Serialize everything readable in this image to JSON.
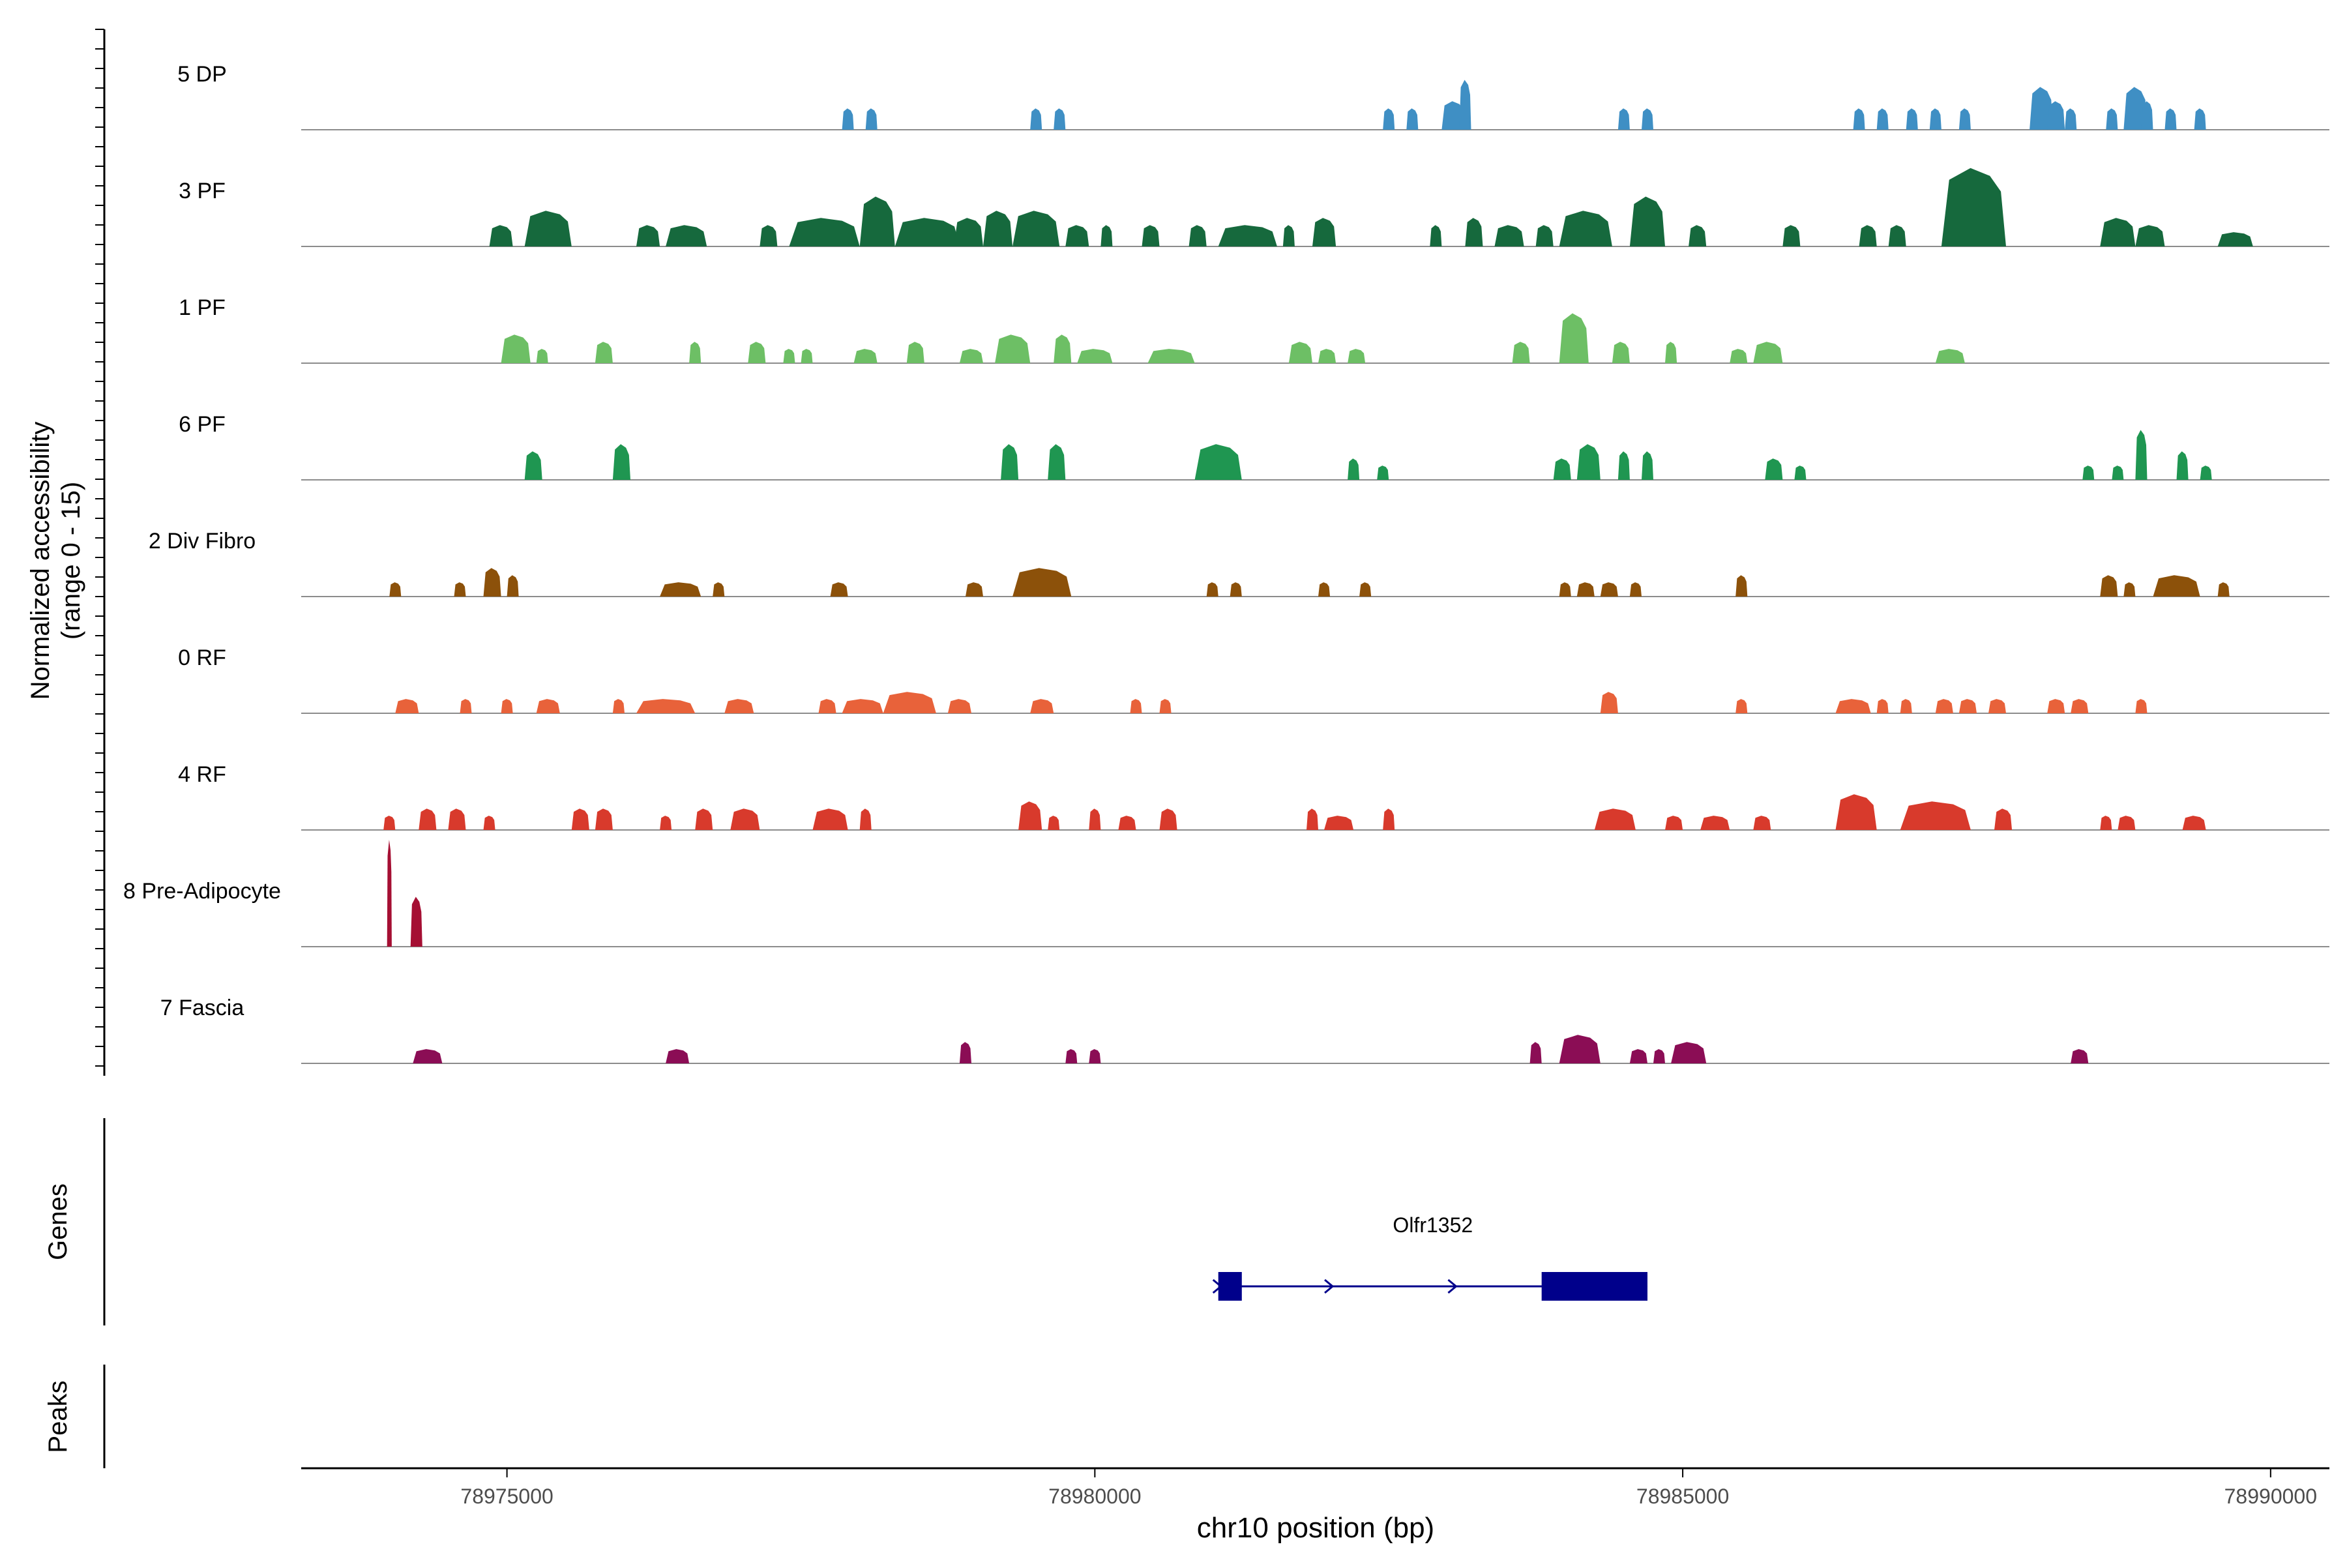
{
  "chart_data": {
    "type": "area",
    "title": "",
    "ylabel_line1": "Normalized accessibility",
    "ylabel_line2": "(range 0 - 15)",
    "xlabel": "chr10 position (bp)",
    "xlim": [
      78973250,
      78990500
    ],
    "ylim": [
      0,
      15
    ],
    "x_ticks": [
      {
        "value": 78975000,
        "label": "78975000"
      },
      {
        "value": 78980000,
        "label": "78980000"
      },
      {
        "value": 78985000,
        "label": "78985000"
      },
      {
        "value": 78990000,
        "label": "78990000"
      }
    ],
    "tracks": [
      {
        "name": "5 DP",
        "color": "#3F8FC4",
        "peaks": [
          [
            78977850,
            78977950,
            3
          ],
          [
            78978050,
            78978150,
            3
          ],
          [
            78979450,
            78979550,
            3
          ],
          [
            78979650,
            78979750,
            3
          ],
          [
            78982450,
            78982550,
            3
          ],
          [
            78982650,
            78982750,
            3
          ],
          [
            78982950,
            78983150,
            4
          ],
          [
            78983100,
            78983200,
            7
          ],
          [
            78984450,
            78984550,
            3
          ],
          [
            78984650,
            78984750,
            3
          ],
          [
            78986450,
            78986550,
            3
          ],
          [
            78986650,
            78986750,
            3
          ],
          [
            78986900,
            78987000,
            3
          ],
          [
            78987100,
            78987200,
            3
          ],
          [
            78987350,
            78987450,
            3
          ],
          [
            78987950,
            78988150,
            6
          ],
          [
            78988100,
            78988250,
            4
          ],
          [
            78988250,
            78988350,
            3
          ],
          [
            78988600,
            78988700,
            3
          ],
          [
            78988750,
            78988950,
            6
          ],
          [
            78988900,
            78989000,
            4
          ],
          [
            78989100,
            78989200,
            3
          ],
          [
            78989350,
            78989450,
            3
          ]
        ]
      },
      {
        "name": "3 PF",
        "color": "#16693D",
        "peaks": [
          [
            78974850,
            78975050,
            3
          ],
          [
            78975150,
            78975550,
            5
          ],
          [
            78976100,
            78976300,
            3
          ],
          [
            78976350,
            78976700,
            3
          ],
          [
            78977150,
            78977300,
            3
          ],
          [
            78977400,
            78978000,
            4
          ],
          [
            78978000,
            78978300,
            7
          ],
          [
            78978300,
            78978850,
            4
          ],
          [
            78978800,
            78979050,
            4
          ],
          [
            78979050,
            78979300,
            5
          ],
          [
            78979300,
            78979700,
            5
          ],
          [
            78979750,
            78979950,
            3
          ],
          [
            78980050,
            78980150,
            3
          ],
          [
            78980400,
            78980550,
            3
          ],
          [
            78980800,
            78980950,
            3
          ],
          [
            78981050,
            78981550,
            3
          ],
          [
            78981600,
            78981700,
            3
          ],
          [
            78981850,
            78982050,
            4
          ],
          [
            78982850,
            78982950,
            3
          ],
          [
            78983150,
            78983300,
            4
          ],
          [
            78983400,
            78983650,
            3
          ],
          [
            78983750,
            78983900,
            3
          ],
          [
            78983950,
            78984400,
            5
          ],
          [
            78984550,
            78984850,
            7
          ],
          [
            78985050,
            78985200,
            3
          ],
          [
            78985850,
            78986000,
            3
          ],
          [
            78986500,
            78986650,
            3
          ],
          [
            78986750,
            78986900,
            3
          ],
          [
            78987200,
            78987750,
            11
          ],
          [
            78988550,
            78988850,
            4
          ],
          [
            78988850,
            78989100,
            3
          ],
          [
            78989550,
            78989850,
            2
          ]
        ]
      },
      {
        "name": "1 PF",
        "color": "#6DBF65",
        "peaks": [
          [
            78974950,
            78975200,
            4
          ],
          [
            78975250,
            78975350,
            2
          ],
          [
            78975750,
            78975900,
            3
          ],
          [
            78976550,
            78976650,
            3
          ],
          [
            78977050,
            78977200,
            3
          ],
          [
            78977350,
            78977450,
            2
          ],
          [
            78977500,
            78977600,
            2
          ],
          [
            78977950,
            78978150,
            2
          ],
          [
            78978400,
            78978550,
            3
          ],
          [
            78978850,
            78979050,
            2
          ],
          [
            78979150,
            78979450,
            4
          ],
          [
            78979650,
            78979800,
            4
          ],
          [
            78979850,
            78980150,
            2
          ],
          [
            78980450,
            78980850,
            2
          ],
          [
            78981650,
            78981850,
            3
          ],
          [
            78981900,
            78982050,
            2
          ],
          [
            78982150,
            78982300,
            2
          ],
          [
            78983550,
            78983700,
            3
          ],
          [
            78983950,
            78984200,
            7
          ],
          [
            78984400,
            78984550,
            3
          ],
          [
            78984850,
            78984950,
            3
          ],
          [
            78985400,
            78985550,
            2
          ],
          [
            78985600,
            78985850,
            3
          ],
          [
            78987150,
            78987400,
            2
          ]
        ]
      },
      {
        "name": "6 PF",
        "color": "#1F9651",
        "peaks": [
          [
            78975150,
            78975300,
            4
          ],
          [
            78975900,
            78976050,
            5
          ],
          [
            78979200,
            78979350,
            5
          ],
          [
            78979600,
            78979750,
            5
          ],
          [
            78980850,
            78981250,
            5
          ],
          [
            78982150,
            78982250,
            3
          ],
          [
            78982400,
            78982500,
            2
          ],
          [
            78983900,
            78984050,
            3
          ],
          [
            78984100,
            78984300,
            5
          ],
          [
            78984450,
            78984550,
            4
          ],
          [
            78984650,
            78984750,
            4
          ],
          [
            78985700,
            78985850,
            3
          ],
          [
            78985950,
            78986050,
            2
          ],
          [
            78988400,
            78988500,
            2
          ],
          [
            78988650,
            78988750,
            2
          ],
          [
            78988850,
            78988950,
            7
          ],
          [
            78989200,
            78989300,
            4
          ],
          [
            78989400,
            78989500,
            2
          ]
        ]
      },
      {
        "name": "2 Div Fibro",
        "color": "#8C510A",
        "peaks": [
          [
            78974000,
            78974100,
            2
          ],
          [
            78974550,
            78974650,
            2
          ],
          [
            78974800,
            78974950,
            4
          ],
          [
            78975000,
            78975100,
            3
          ],
          [
            78976300,
            78976650,
            2
          ],
          [
            78976750,
            78976850,
            2
          ],
          [
            78977750,
            78977900,
            2
          ],
          [
            78978900,
            78979050,
            2
          ],
          [
            78979300,
            78979800,
            4
          ],
          [
            78980950,
            78981050,
            2
          ],
          [
            78981150,
            78981250,
            2
          ],
          [
            78981900,
            78982000,
            2
          ],
          [
            78982250,
            78982350,
            2
          ],
          [
            78983950,
            78984050,
            2
          ],
          [
            78984100,
            78984250,
            2
          ],
          [
            78984300,
            78984450,
            2
          ],
          [
            78984550,
            78984650,
            2
          ],
          [
            78985450,
            78985550,
            3
          ],
          [
            78988550,
            78988700,
            3
          ],
          [
            78988750,
            78988850,
            2
          ],
          [
            78989000,
            78989400,
            3
          ],
          [
            78989550,
            78989650,
            2
          ]
        ]
      },
      {
        "name": "0 RF",
        "color": "#E8623A",
        "peaks": [
          [
            78974050,
            78974250,
            2
          ],
          [
            78974600,
            78974700,
            2
          ],
          [
            78974950,
            78975050,
            2
          ],
          [
            78975250,
            78975450,
            2
          ],
          [
            78975900,
            78976000,
            2
          ],
          [
            78976100,
            78976600,
            2
          ],
          [
            78976850,
            78977100,
            2
          ],
          [
            78977650,
            78977800,
            2
          ],
          [
            78977850,
            78978200,
            2
          ],
          [
            78978200,
            78978650,
            3
          ],
          [
            78978750,
            78978950,
            2
          ],
          [
            78979450,
            78979650,
            2
          ],
          [
            78980300,
            78980400,
            2
          ],
          [
            78980550,
            78980650,
            2
          ],
          [
            78984300,
            78984450,
            3
          ],
          [
            78985450,
            78985550,
            2
          ],
          [
            78986300,
            78986600,
            2
          ],
          [
            78986650,
            78986750,
            2
          ],
          [
            78986850,
            78986950,
            2
          ],
          [
            78987150,
            78987300,
            2
          ],
          [
            78987350,
            78987500,
            2
          ],
          [
            78987600,
            78987750,
            2
          ],
          [
            78988100,
            78988250,
            2
          ],
          [
            78988300,
            78988450,
            2
          ],
          [
            78988850,
            78988950,
            2
          ]
        ]
      },
      {
        "name": "4 RF",
        "color": "#D83A2C",
        "peaks": [
          [
            78973950,
            78974050,
            2
          ],
          [
            78974250,
            78974400,
            3
          ],
          [
            78974500,
            78974650,
            3
          ],
          [
            78974800,
            78974900,
            2
          ],
          [
            78975550,
            78975700,
            3
          ],
          [
            78975750,
            78975900,
            3
          ],
          [
            78976300,
            78976400,
            2
          ],
          [
            78976600,
            78976750,
            3
          ],
          [
            78976900,
            78977150,
            3
          ],
          [
            78977600,
            78977900,
            3
          ],
          [
            78978000,
            78978100,
            3
          ],
          [
            78979350,
            78979550,
            4
          ],
          [
            78979600,
            78979700,
            2
          ],
          [
            78979950,
            78980050,
            3
          ],
          [
            78980200,
            78980350,
            2
          ],
          [
            78980550,
            78980700,
            3
          ],
          [
            78981800,
            78981900,
            3
          ],
          [
            78981950,
            78982200,
            2
          ],
          [
            78982450,
            78982550,
            3
          ],
          [
            78984250,
            78984600,
            3
          ],
          [
            78984850,
            78985000,
            2
          ],
          [
            78985150,
            78985400,
            2
          ],
          [
            78985600,
            78985750,
            2
          ],
          [
            78986300,
            78986650,
            5
          ],
          [
            78986850,
            78987450,
            4
          ],
          [
            78987650,
            78987800,
            3
          ],
          [
            78988550,
            78988650,
            2
          ],
          [
            78988700,
            78988850,
            2
          ],
          [
            78989250,
            78989450,
            2
          ]
        ]
      },
      {
        "name": "8 Pre-Adipocyte",
        "color": "#A50F33",
        "peaks": [
          [
            78973980,
            78974020,
            15
          ],
          [
            78974180,
            78974280,
            7
          ]
        ]
      },
      {
        "name": "7 Fascia",
        "color": "#8B0D55",
        "peaks": [
          [
            78974200,
            78974450,
            2
          ],
          [
            78976350,
            78976550,
            2
          ],
          [
            78978850,
            78978950,
            3
          ],
          [
            78979750,
            78979850,
            2
          ],
          [
            78979950,
            78980050,
            2
          ],
          [
            78983700,
            78983800,
            3
          ],
          [
            78983950,
            78984300,
            4
          ],
          [
            78984550,
            78984700,
            2
          ],
          [
            78984750,
            78984850,
            2
          ],
          [
            78984900,
            78985200,
            3
          ],
          [
            78988300,
            78988450,
            2
          ]
        ]
      }
    ]
  },
  "genes_panel": {
    "label": "Genes",
    "gene": {
      "name": "Olfr1352",
      "color": "#00008B",
      "start": 78981050,
      "end": 78984700,
      "strand": "+",
      "exons": [
        [
          78981050,
          78981250
        ],
        [
          78983800,
          78984700
        ]
      ]
    }
  },
  "peaks_panel": {
    "label": "Peaks"
  }
}
